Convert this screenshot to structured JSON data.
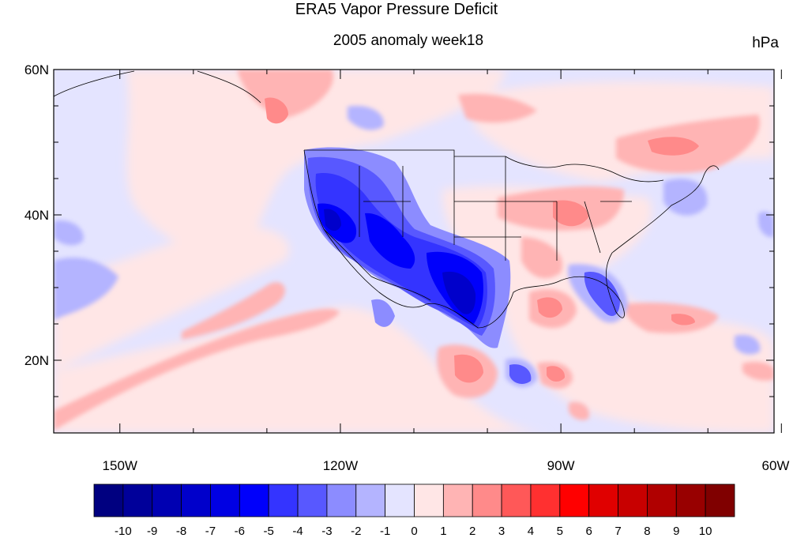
{
  "title": "ERA5 Vapor Pressure Deficit",
  "subtitle": "2005 anomaly week18",
  "units": "hPa",
  "axes": {
    "lat_ticks": [
      {
        "label": "60N",
        "value": 60
      },
      {
        "label": "40N",
        "value": 40
      },
      {
        "label": "20N",
        "value": 20
      }
    ],
    "lon_ticks": [
      {
        "label": "150W",
        "value": -150
      },
      {
        "label": "120W",
        "value": -120
      },
      {
        "label": "90W",
        "value": -90
      },
      {
        "label": "60W",
        "value": -60
      }
    ],
    "lon_range": [
      -159,
      -61
    ],
    "lat_range": [
      10,
      60
    ]
  },
  "colorbar": {
    "labels": [
      "-10",
      "-9",
      "-8",
      "-7",
      "-6",
      "-5",
      "-4",
      "-3",
      "-2",
      "-1",
      "0",
      "1",
      "2",
      "3",
      "4",
      "5",
      "6",
      "7",
      "8",
      "9",
      "10"
    ],
    "colors": [
      "#000080",
      "#00009a",
      "#0000b2",
      "#0000cb",
      "#0000e3",
      "#0000fb",
      "#3434ff",
      "#5858ff",
      "#8c8cff",
      "#b4b4ff",
      "#e4e4ff",
      "#ffe6e6",
      "#ffb4b4",
      "#ff8a8a",
      "#ff5858",
      "#ff3030",
      "#ff0000",
      "#e00000",
      "#c80000",
      "#b00000",
      "#980000",
      "#800000"
    ]
  },
  "map": {
    "background_color": "#e4e4ff",
    "land_border_color": "#000000"
  }
}
